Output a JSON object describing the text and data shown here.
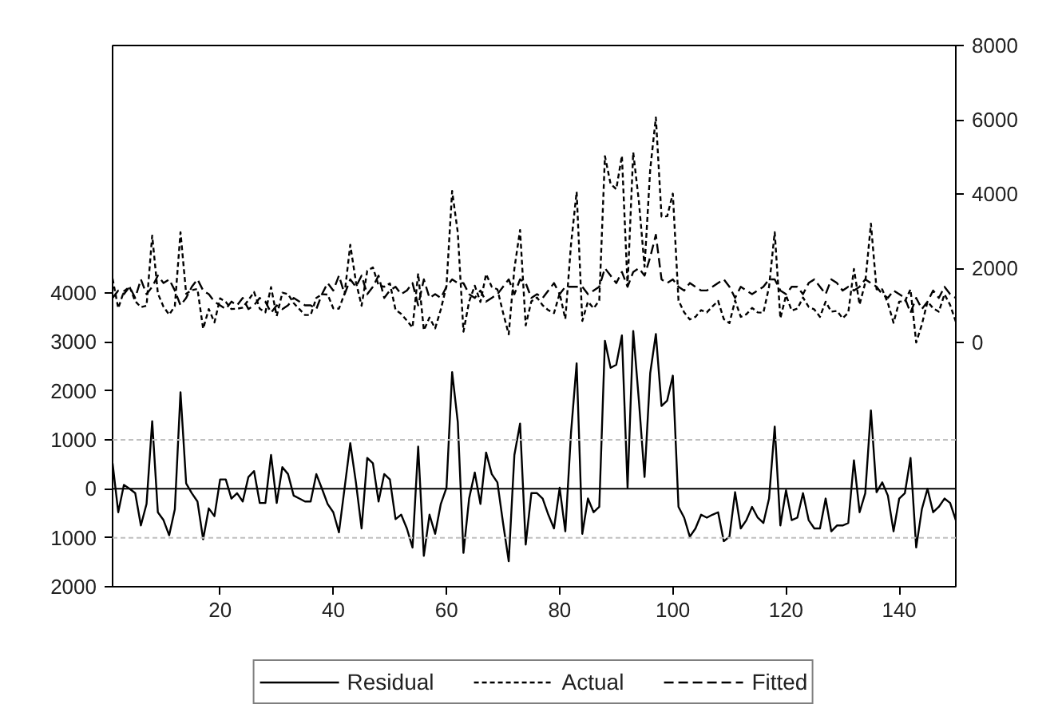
{
  "chart_data": {
    "type": "line",
    "x": [
      1,
      2,
      3,
      4,
      5,
      6,
      7,
      8,
      9,
      10,
      11,
      12,
      13,
      14,
      15,
      16,
      17,
      18,
      19,
      20,
      21,
      22,
      23,
      24,
      25,
      26,
      27,
      28,
      29,
      30,
      31,
      32,
      33,
      34,
      35,
      36,
      37,
      38,
      39,
      40,
      41,
      42,
      43,
      44,
      45,
      46,
      47,
      48,
      49,
      50,
      51,
      52,
      53,
      54,
      55,
      56,
      57,
      58,
      59,
      60,
      61,
      62,
      63,
      64,
      65,
      66,
      67,
      68,
      69,
      70,
      71,
      72,
      73,
      74,
      75,
      76,
      77,
      78,
      79,
      80,
      81,
      82,
      83,
      84,
      85,
      86,
      87,
      88,
      89,
      90,
      91,
      92,
      93,
      94,
      95,
      96,
      97,
      98,
      99,
      100,
      101,
      102,
      103,
      104,
      105,
      106,
      107,
      108,
      109,
      110,
      111,
      112,
      113,
      114,
      115,
      116,
      117,
      118,
      119,
      120,
      121,
      122,
      123,
      124,
      125,
      126,
      127,
      128,
      129,
      130,
      131,
      132,
      133,
      134,
      135,
      136,
      137,
      138,
      139,
      140,
      141,
      142,
      143,
      144,
      145,
      146,
      147,
      148,
      149,
      150
    ],
    "series": [
      {
        "name": "Residual",
        "color": "#000000",
        "line_style": "solid",
        "values": [
          520,
          -480,
          80,
          0,
          -90,
          -750,
          -310,
          1380,
          -480,
          -640,
          -950,
          -420,
          1970,
          110,
          -90,
          -260,
          -1030,
          -400,
          -560,
          190,
          190,
          -200,
          -90,
          -260,
          240,
          360,
          -290,
          -290,
          690,
          -290,
          440,
          300,
          -140,
          -200,
          -260,
          -260,
          300,
          0,
          -310,
          -480,
          -890,
          20,
          930,
          130,
          -810,
          630,
          520,
          -260,
          300,
          190,
          -620,
          -530,
          -810,
          -1200,
          860,
          -1370,
          -530,
          -920,
          -310,
          20,
          2380,
          1360,
          -1310,
          -200,
          330,
          -310,
          740,
          300,
          130,
          -700,
          -1480,
          690,
          1330,
          -1140,
          -90,
          -90,
          -200,
          -530,
          -810,
          20,
          -870,
          1130,
          2560,
          -920,
          -200,
          -480,
          -370,
          3020,
          2470,
          2530,
          3130,
          20,
          3220,
          1800,
          240,
          2360,
          3160,
          1690,
          1800,
          2310,
          -370,
          -590,
          -980,
          -810,
          -530,
          -590,
          -530,
          -480,
          -1070,
          -980,
          -70,
          -810,
          -640,
          -370,
          -590,
          -700,
          -200,
          1270,
          -750,
          -30,
          -640,
          -590,
          -90,
          -640,
          -810,
          -810,
          -200,
          -870,
          -750,
          -750,
          -700,
          580,
          -480,
          -90,
          1600,
          -70,
          130,
          -140,
          -870,
          -200,
          -90,
          630,
          -1200,
          -420,
          0,
          -480,
          -370,
          -200,
          -290,
          -640
        ]
      },
      {
        "name": "Actual",
        "color": "#000000",
        "line_style": "dotted",
        "axis": "y2",
        "values": [
          1720,
          920,
          1380,
          1500,
          1110,
          950,
          990,
          2880,
          1320,
          960,
          750,
          980,
          2970,
          1310,
          1410,
          1440,
          370,
          900,
          540,
          1190,
          1090,
          900,
          910,
          940,
          1140,
          1360,
          910,
          810,
          1490,
          710,
          1340,
          1300,
          1060,
          900,
          740,
          740,
          1200,
          1300,
          1290,
          920,
          910,
          1320,
          2630,
          1630,
          990,
          1930,
          2020,
          1540,
          1500,
          1590,
          880,
          770,
          590,
          400,
          1860,
          330,
          670,
          380,
          890,
          1520,
          4080,
          2960,
          290,
          1100,
          1530,
          1090,
          1840,
          1500,
          1430,
          800,
          220,
          1990,
          3030,
          460,
          1110,
          1210,
          1000,
          870,
          790,
          1320,
          630,
          2630,
          4060,
          580,
          1100,
          920,
          1130,
          5020,
          4270,
          4130,
          5030,
          1520,
          5120,
          3800,
          2040,
          4660,
          6060,
          3390,
          3400,
          4010,
          1130,
          810,
          620,
          690,
          870,
          810,
          970,
          1120,
          630,
          520,
          1130,
          690,
          760,
          930,
          810,
          800,
          1500,
          2970,
          650,
          1270,
          860,
          910,
          1210,
          960,
          890,
          690,
          1100,
          830,
          850,
          650,
          800,
          1980,
          1020,
          1610,
          3200,
          1430,
          1430,
          1060,
          530,
          1100,
          1110,
          1430,
          0,
          480,
          1100,
          920,
          830,
          1300,
          1010,
          560
        ]
      },
      {
        "name": "Fitted",
        "color": "#000000",
        "line_style": "dashed",
        "axis": "y2",
        "values": [
          1200,
          1400,
          1300,
          1500,
          1200,
          1700,
          1300,
          1500,
          1800,
          1600,
          1700,
          1400,
          1000,
          1200,
          1500,
          1700,
          1400,
          1300,
          1100,
          1000,
          900,
          1100,
          1000,
          1200,
          900,
          1000,
          1200,
          1100,
          800,
          1000,
          900,
          1000,
          1200,
          1100,
          1000,
          1000,
          900,
          1300,
          1600,
          1400,
          1800,
          1300,
          1700,
          1500,
          1800,
          1300,
          1500,
          1800,
          1200,
          1400,
          1500,
          1300,
          1400,
          1600,
          1000,
          1700,
          1200,
          1300,
          1200,
          1500,
          1700,
          1600,
          1600,
          1300,
          1200,
          1400,
          1100,
          1200,
          1300,
          1500,
          1700,
          1300,
          1700,
          1600,
          1200,
          1300,
          1200,
          1400,
          1600,
          1300,
          1500,
          1500,
          1500,
          1500,
          1300,
          1400,
          1500,
          2000,
          1800,
          1600,
          1900,
          1500,
          1900,
          2000,
          1800,
          2300,
          2900,
          1700,
          1600,
          1700,
          1500,
          1400,
          1600,
          1500,
          1400,
          1400,
          1500,
          1600,
          1700,
          1500,
          1200,
          1500,
          1400,
          1300,
          1400,
          1500,
          1700,
          1700,
          1400,
          1300,
          1500,
          1500,
          1300,
          1600,
          1700,
          1500,
          1300,
          1700,
          1600,
          1400,
          1500,
          1400,
          1500,
          1700,
          1600,
          1500,
          1300,
          1200,
          1400,
          1300,
          1200,
          800,
          1200,
          900,
          1100,
          1400,
          1200,
          1500,
          1300,
          1200
        ]
      }
    ],
    "xlim": [
      1,
      150
    ],
    "xticks": [
      20,
      40,
      60,
      80,
      100,
      120,
      140
    ],
    "ylim": [
      -2000,
      9050
    ],
    "yticks": [
      {
        "value": -2000,
        "label": "2000"
      },
      {
        "value": -1000,
        "label": "1000"
      },
      0,
      1000,
      2000,
      3000,
      4000
    ],
    "y2lim": [
      -6580,
      8000
    ],
    "y2ticks": [
      0,
      2000,
      4000,
      6000,
      8000
    ],
    "ref_lines": [
      {
        "axis": "y",
        "value": 1000,
        "color": "#c0c0c0",
        "line_style": "dotted"
      },
      {
        "axis": "y",
        "value": 0,
        "color": "#000000",
        "line_style": "solid"
      },
      {
        "axis": "y",
        "value": -1000,
        "color": "#c0c0c0",
        "line_style": "dotted"
      }
    ],
    "grid": false,
    "legend": "bottom"
  }
}
